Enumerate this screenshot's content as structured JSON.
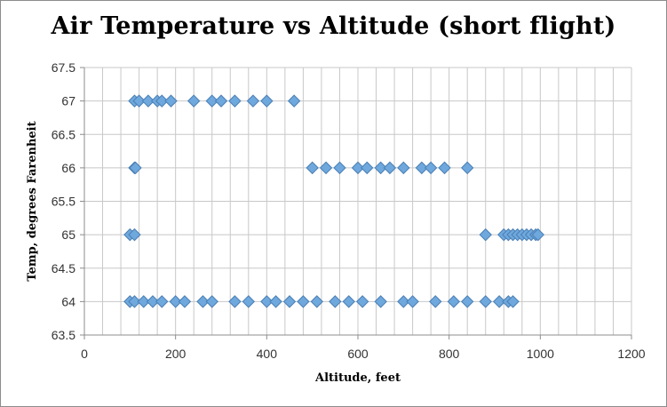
{
  "chart_data": {
    "type": "scatter",
    "title": "Air Temperature vs Altitude (short flight)",
    "xlabel": "Altitude, feet",
    "ylabel": "Temp, degrees Farenheit",
    "xlim": [
      0,
      1200
    ],
    "ylim": [
      63.5,
      67.5
    ],
    "xticks": [
      "0",
      "200",
      "400",
      "600",
      "800",
      "1000",
      "1200"
    ],
    "yticks": [
      "63.5",
      "64",
      "64.5",
      "65",
      "65.5",
      "66",
      "66.5",
      "67",
      "67.5"
    ],
    "grid": true,
    "marker": "diamond",
    "marker_color": "#6fa8dc",
    "series": [
      {
        "points": [
          [
            110,
            67
          ],
          [
            120,
            67
          ],
          [
            140,
            67
          ],
          [
            160,
            67
          ],
          [
            170,
            67
          ],
          [
            190,
            67
          ],
          [
            240,
            67
          ],
          [
            280,
            67
          ],
          [
            300,
            67
          ],
          [
            330,
            67
          ],
          [
            370,
            67
          ],
          [
            400,
            67
          ],
          [
            460,
            67
          ],
          [
            110,
            66
          ],
          [
            112,
            66
          ],
          [
            500,
            66
          ],
          [
            530,
            66
          ],
          [
            560,
            66
          ],
          [
            600,
            66
          ],
          [
            620,
            66
          ],
          [
            650,
            66
          ],
          [
            670,
            66
          ],
          [
            700,
            66
          ],
          [
            740,
            66
          ],
          [
            760,
            66
          ],
          [
            790,
            66
          ],
          [
            840,
            66
          ],
          [
            100,
            65
          ],
          [
            110,
            65
          ],
          [
            880,
            65
          ],
          [
            920,
            65
          ],
          [
            930,
            65
          ],
          [
            940,
            65
          ],
          [
            950,
            65
          ],
          [
            960,
            65
          ],
          [
            970,
            65
          ],
          [
            980,
            65
          ],
          [
            990,
            65
          ],
          [
            995,
            65
          ],
          [
            100,
            64
          ],
          [
            110,
            64
          ],
          [
            130,
            64
          ],
          [
            150,
            64
          ],
          [
            170,
            64
          ],
          [
            200,
            64
          ],
          [
            220,
            64
          ],
          [
            260,
            64
          ],
          [
            280,
            64
          ],
          [
            330,
            64
          ],
          [
            360,
            64
          ],
          [
            400,
            64
          ],
          [
            420,
            64
          ],
          [
            450,
            64
          ],
          [
            480,
            64
          ],
          [
            510,
            64
          ],
          [
            550,
            64
          ],
          [
            580,
            64
          ],
          [
            610,
            64
          ],
          [
            650,
            64
          ],
          [
            700,
            64
          ],
          [
            720,
            64
          ],
          [
            770,
            64
          ],
          [
            810,
            64
          ],
          [
            840,
            64
          ],
          [
            880,
            64
          ],
          [
            910,
            64
          ],
          [
            930,
            64
          ],
          [
            940,
            64
          ]
        ]
      }
    ]
  }
}
